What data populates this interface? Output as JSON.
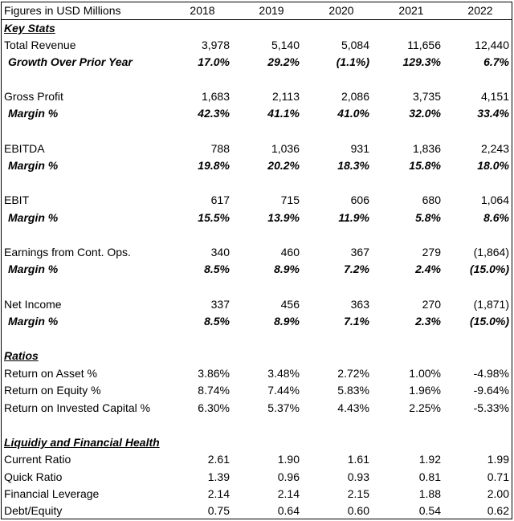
{
  "header": {
    "title": "Figures in USD Millions",
    "years": [
      "2018",
      "2019",
      "2020",
      "2021",
      "2022"
    ]
  },
  "sections": {
    "key_stats": "Key Stats",
    "ratios": "Ratios",
    "liquidity": "Liquidiy and Financial Health"
  },
  "rows": {
    "total_revenue": {
      "label": "Total Revenue",
      "values": [
        "3,978",
        "5,140",
        "5,084",
        "11,656",
        "12,440"
      ]
    },
    "growth": {
      "label": "Growth Over Prior Year",
      "values": [
        "17.0%",
        "29.2%",
        "(1.1%)",
        "129.3%",
        "6.7%"
      ]
    },
    "gross_profit": {
      "label": "Gross Profit",
      "values": [
        "1,683",
        "2,113",
        "2,086",
        "3,735",
        "4,151"
      ]
    },
    "gross_margin": {
      "label": "Margin %",
      "values": [
        "42.3%",
        "41.1%",
        "41.0%",
        "32.0%",
        "33.4%"
      ]
    },
    "ebitda": {
      "label": "EBITDA",
      "values": [
        "788",
        "1,036",
        "931",
        "1,836",
        "2,243"
      ]
    },
    "ebitda_margin": {
      "label": "Margin %",
      "values": [
        "19.8%",
        "20.2%",
        "18.3%",
        "15.8%",
        "18.0%"
      ]
    },
    "ebit": {
      "label": "EBIT",
      "values": [
        "617",
        "715",
        "606",
        "680",
        "1,064"
      ]
    },
    "ebit_margin": {
      "label": "Margin %",
      "values": [
        "15.5%",
        "13.9%",
        "11.9%",
        "5.8%",
        "8.6%"
      ]
    },
    "earnings_cont_ops": {
      "label": "Earnings from Cont. Ops.",
      "values": [
        "340",
        "460",
        "367",
        "279",
        "(1,864)"
      ]
    },
    "earnings_margin": {
      "label": "Margin %",
      "values": [
        "8.5%",
        "8.9%",
        "7.2%",
        "2.4%",
        "(15.0%)"
      ]
    },
    "net_income": {
      "label": "Net Income",
      "values": [
        "337",
        "456",
        "363",
        "270",
        "(1,871)"
      ]
    },
    "net_margin": {
      "label": "Margin %",
      "values": [
        "8.5%",
        "8.9%",
        "7.1%",
        "2.3%",
        "(15.0%)"
      ]
    },
    "roa": {
      "label": "Return on Asset %",
      "values": [
        "3.86%",
        "3.48%",
        "2.72%",
        "1.00%",
        "-4.98%"
      ]
    },
    "roe": {
      "label": "Return on Equity %",
      "values": [
        "8.74%",
        "7.44%",
        "5.83%",
        "1.96%",
        "-9.64%"
      ]
    },
    "roic": {
      "label": "Return on Invested Capital %",
      "values": [
        "6.30%",
        "5.37%",
        "4.43%",
        "2.25%",
        "-5.33%"
      ]
    },
    "current_ratio": {
      "label": "Current Ratio",
      "values": [
        "2.61",
        "1.90",
        "1.61",
        "1.92",
        "1.99"
      ]
    },
    "quick_ratio": {
      "label": "Quick Ratio",
      "values": [
        "1.39",
        "0.96",
        "0.93",
        "0.81",
        "0.71"
      ]
    },
    "fin_leverage": {
      "label": "Financial Leverage",
      "values": [
        "2.14",
        "2.14",
        "2.15",
        "1.88",
        "2.00"
      ]
    },
    "debt_equity": {
      "label": "Debt/Equity",
      "values": [
        "0.75",
        "0.64",
        "0.60",
        "0.54",
        "0.62"
      ]
    }
  }
}
